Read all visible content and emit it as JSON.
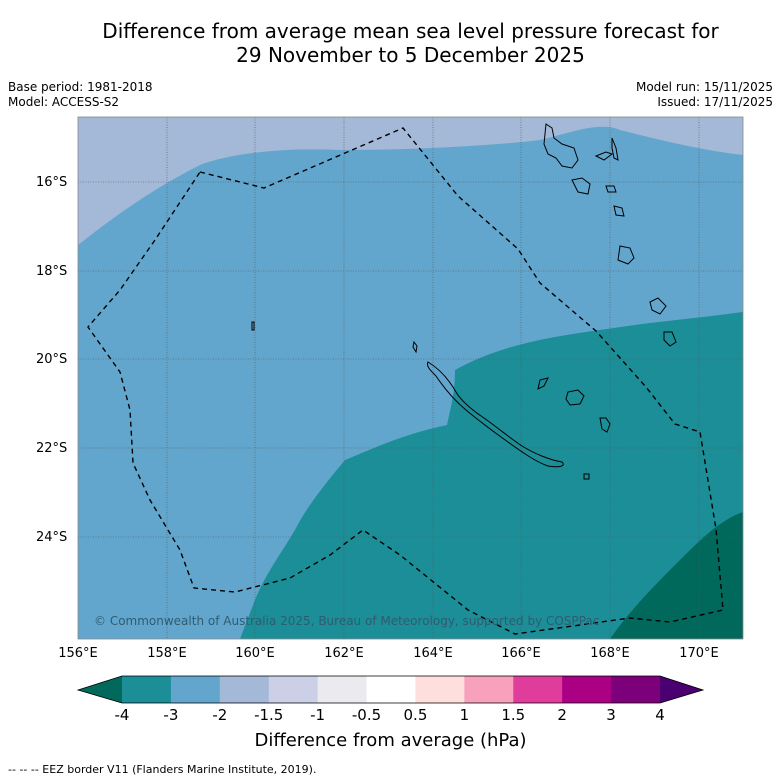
{
  "title_line1": "Difference from average mean sea level pressure forecast for",
  "title_line2": "29 November to 5 December 2025",
  "base_period": "Base period: 1981-2018",
  "model": "Model: ACCESS-S2",
  "model_run": "Model run: 15/11/2025",
  "issued": "Issued: 17/11/2025",
  "lat_labels": [
    "16°S",
    "18°S",
    "20°S",
    "22°S",
    "24°S"
  ],
  "lon_labels": [
    "156°E",
    "158°E",
    "160°E",
    "162°E",
    "164°E",
    "166°E",
    "168°E",
    "170°E"
  ],
  "copyright": "© Commonwealth of Australia 2025, Bureau of Meteorology, supported by COSPPac",
  "colorbar": {
    "ticks": [
      "-4",
      "-3",
      "-2",
      "-1.5",
      "-1",
      "-0.5",
      "0.5",
      "1",
      "1.5",
      "2",
      "3",
      "4"
    ],
    "colors": [
      "#00695c",
      "#1b8e98",
      "#63a6cd",
      "#a4b8d8",
      "#ccd0e6",
      "#ebebef",
      "#ffffff",
      "#ffdede",
      "#f7a1bd",
      "#df3c9b",
      "#ab0083",
      "#7d007b",
      "#4a0070"
    ],
    "title": "Difference from average (hPa)"
  },
  "footnote": "--  --  -- EEZ border V11 (Flanders Marine Institute, 2019)."
}
